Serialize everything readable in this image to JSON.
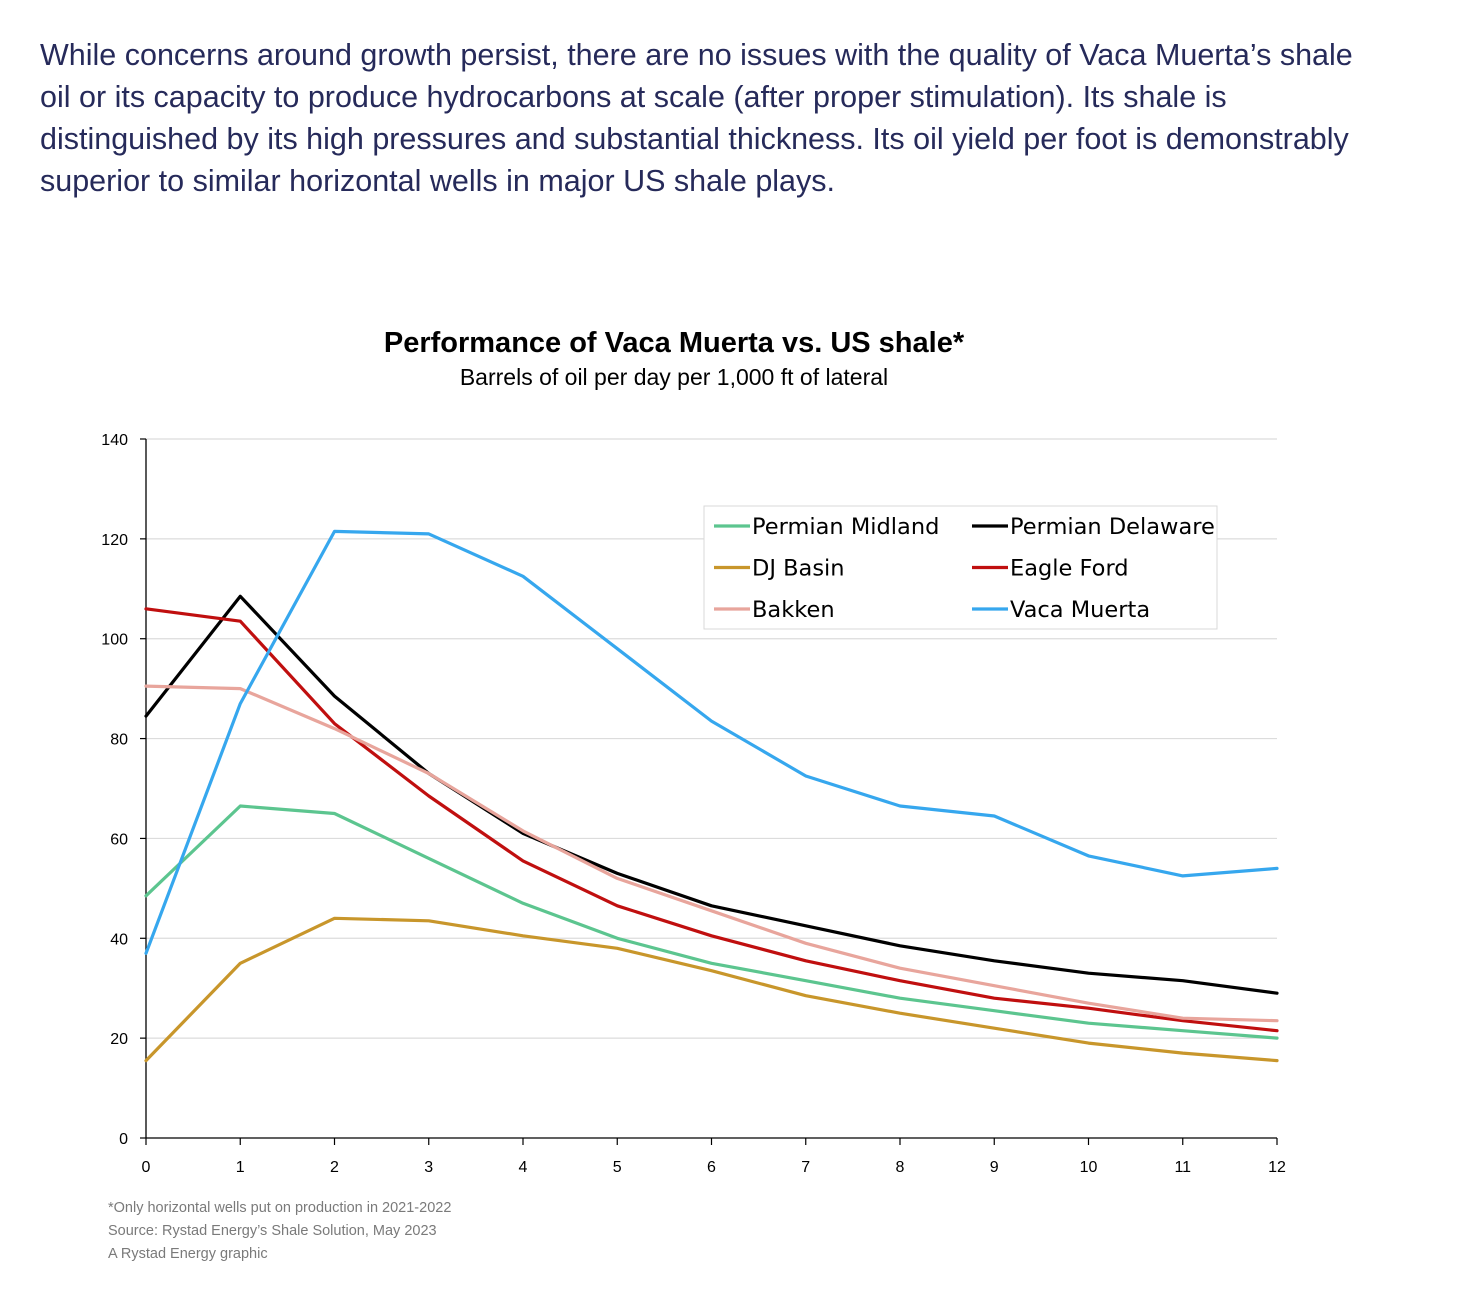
{
  "intro_text": "While concerns around growth persist, there are no issues with the quality of Vaca Muerta’s shale oil or its capacity to produce hydrocarbons at scale (after proper stimulation). Its shale is distinguished by its high pressures and substantial thickness. Its oil yield per foot is demonstrably superior to similar horizontal wells in major US shale plays.",
  "chart_data": {
    "type": "line",
    "title": "Performance of Vaca Muerta vs. US shale*",
    "subtitle": "Barrels of oil per day per 1,000 ft of lateral",
    "xlabel": "",
    "ylabel": "",
    "x": [
      0,
      1,
      2,
      3,
      4,
      5,
      6,
      7,
      8,
      9,
      10,
      11,
      12
    ],
    "xlim": [
      0,
      12
    ],
    "ylim": [
      0,
      140
    ],
    "yticks": [
      0,
      20,
      40,
      60,
      80,
      100,
      120,
      140
    ],
    "grid": true,
    "legend_position": "top-right",
    "series": [
      {
        "name": "Permian Midland",
        "color": "#5cc58f",
        "values": [
          48.5,
          66.5,
          65,
          56,
          47,
          40,
          35,
          31.5,
          28,
          25.5,
          23,
          21.5,
          20
        ]
      },
      {
        "name": "Permian Delaware",
        "color": "#000000",
        "values": [
          84.5,
          108.5,
          88.5,
          73,
          61,
          53,
          46.5,
          42.5,
          38.5,
          35.5,
          33,
          31.5,
          29
        ]
      },
      {
        "name": "DJ Basin",
        "color": "#c8962b",
        "values": [
          15.5,
          35,
          44,
          43.5,
          40.5,
          38,
          33.5,
          28.5,
          25,
          22,
          19,
          17,
          15.5
        ]
      },
      {
        "name": "Eagle Ford",
        "color": "#c00f0f",
        "values": [
          106,
          103.5,
          83,
          68.5,
          55.5,
          46.5,
          40.5,
          35.5,
          31.5,
          28,
          26,
          23.5,
          21.5
        ]
      },
      {
        "name": "Bakken",
        "color": "#e8a59c",
        "values": [
          90.5,
          90,
          82,
          73,
          61.5,
          52,
          45.5,
          39,
          34,
          30.5,
          27,
          24,
          23.5
        ]
      },
      {
        "name": "Vaca Muerta",
        "color": "#36a7ee",
        "values": [
          37,
          87,
          121.5,
          121,
          112.5,
          98,
          83.5,
          72.5,
          66.5,
          64.5,
          56.5,
          52.5,
          54
        ]
      }
    ],
    "notes": [
      "*Only horizontal wells put on production in 2021-2022",
      "Source: Rystad Energy’s Shale Solution, May 2023",
      "A Rystad Energy graphic"
    ]
  }
}
